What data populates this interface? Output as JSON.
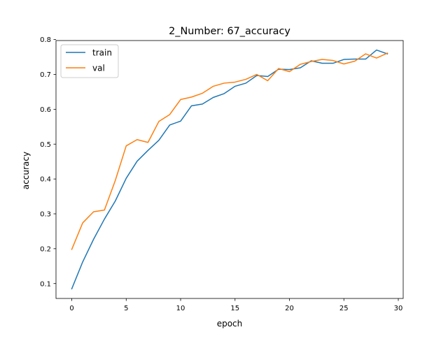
{
  "chart_data": {
    "type": "line",
    "title": "2_Number: 67_accuracy",
    "xlabel": "epoch",
    "ylabel": "accuracy",
    "xlim": [
      -1.45,
      30.45
    ],
    "ylim": [
      0.0573,
      0.7972
    ],
    "xticks": [
      0,
      5,
      10,
      15,
      20,
      25,
      30
    ],
    "xtick_labels": [
      "0",
      "5",
      "10",
      "15",
      "20",
      "25",
      "30"
    ],
    "yticks": [
      0.1,
      0.2,
      0.3,
      0.4,
      0.5,
      0.6,
      0.7,
      0.8
    ],
    "ytick_labels": [
      "0.1",
      "0.2",
      "0.3",
      "0.4",
      "0.5",
      "0.6",
      "0.7",
      "0.8"
    ],
    "grid": false,
    "legend_position": "top-left",
    "x": [
      0,
      1,
      2,
      3,
      4,
      5,
      6,
      7,
      8,
      9,
      10,
      11,
      12,
      13,
      14,
      15,
      16,
      17,
      18,
      19,
      20,
      21,
      22,
      23,
      24,
      25,
      26,
      27,
      28,
      29
    ],
    "series": [
      {
        "name": "train",
        "color": "#1f77b4",
        "values": [
          0.085,
          0.162,
          0.227,
          0.285,
          0.337,
          0.402,
          0.451,
          0.482,
          0.511,
          0.555,
          0.566,
          0.61,
          0.615,
          0.634,
          0.645,
          0.666,
          0.675,
          0.697,
          0.694,
          0.715,
          0.714,
          0.719,
          0.739,
          0.732,
          0.732,
          0.743,
          0.744,
          0.744,
          0.77,
          0.759
        ]
      },
      {
        "name": "val",
        "color": "#ff7f0e",
        "values": [
          0.198,
          0.274,
          0.306,
          0.311,
          0.396,
          0.495,
          0.513,
          0.505,
          0.565,
          0.585,
          0.628,
          0.635,
          0.646,
          0.666,
          0.675,
          0.678,
          0.686,
          0.7,
          0.682,
          0.717,
          0.708,
          0.729,
          0.737,
          0.743,
          0.74,
          0.73,
          0.738,
          0.759,
          0.747,
          0.761
        ]
      }
    ]
  }
}
